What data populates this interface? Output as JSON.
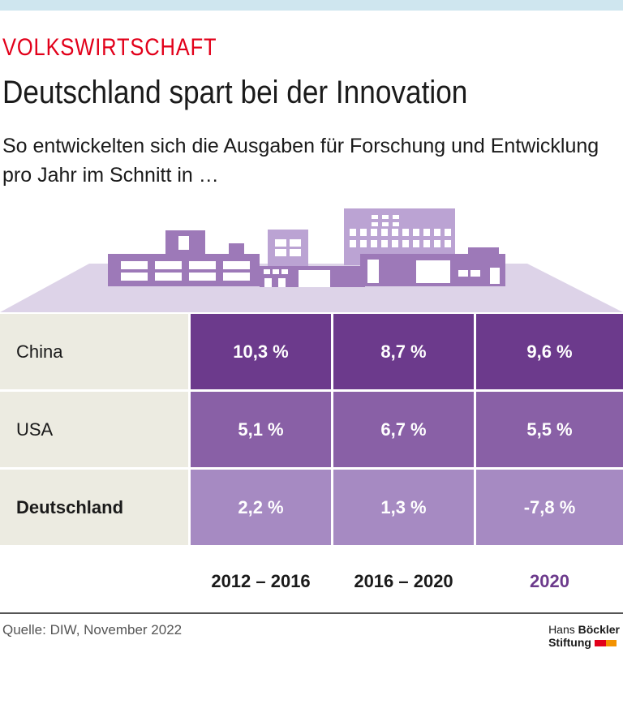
{
  "kicker": "VOLKSWIRTSCHAFT",
  "title": "Deutschland spart bei der Innovation",
  "subtitle": "So entwickelten sich die Ausgaben für Forschung und Entwicklung pro Jahr im Schnitt in …",
  "columns": [
    "2012 – 2016",
    "2016 – 2020",
    "2020"
  ],
  "rows": [
    {
      "label": "China",
      "values": [
        "10,3 %",
        "8,7 %",
        "9,6 %"
      ],
      "color": "#6c3a8c"
    },
    {
      "label": "USA",
      "values": [
        "5,1 %",
        "6,7 %",
        "5,5 %"
      ],
      "color": "#8960a6"
    },
    {
      "label": "Deutschland",
      "values": [
        "2,2 %",
        "1,3 %",
        "-7,8 %"
      ],
      "color": "#a68ac2"
    }
  ],
  "highlight_color": "#6c3a8c",
  "source": "Quelle: DIW, November 2022",
  "logo": {
    "line1a": "Hans ",
    "line1b": "Böckler",
    "line2": "Stiftung"
  }
}
